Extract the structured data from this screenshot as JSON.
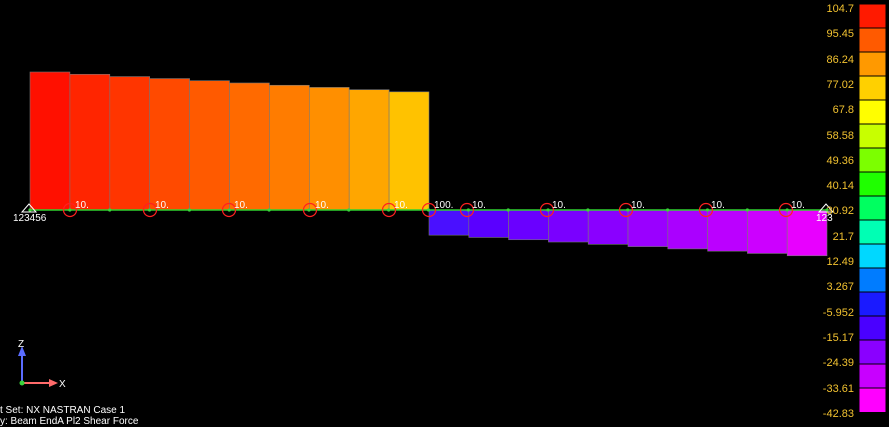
{
  "legend": {
    "values": [
      "104.7",
      "95.45",
      "86.24",
      "77.02",
      "67.8",
      "58.58",
      "49.36",
      "40.14",
      "30.92",
      "21.7",
      "12.49",
      "3.267",
      "-5.952",
      "-15.17",
      "-24.39",
      "-33.61",
      "-42.83"
    ],
    "colors": [
      "#ff1a00",
      "#ff5a00",
      "#ff9900",
      "#ffd000",
      "#fffe00",
      "#c8ff00",
      "#7cff00",
      "#1fff00",
      "#00ff60",
      "#00ffb4",
      "#00d8ff",
      "#007cff",
      "#1a1aff",
      "#4a00ff",
      "#8a00ff",
      "#c800ff",
      "#ff00ff"
    ]
  },
  "beam": {
    "left_bars": [
      {
        "value": 90.5,
        "color": "#ff1000"
      },
      {
        "value": 89.0,
        "color": "#ff2500"
      },
      {
        "value": 87.5,
        "color": "#ff3500"
      },
      {
        "value": 86.2,
        "color": "#ff4a00"
      },
      {
        "value": 84.8,
        "color": "#ff5a00"
      },
      {
        "value": 83.3,
        "color": "#ff6a00"
      },
      {
        "value": 81.8,
        "color": "#ff7c00"
      },
      {
        "value": 80.4,
        "color": "#ff8f00"
      },
      {
        "value": 78.9,
        "color": "#ffa600"
      },
      {
        "value": 77.5,
        "color": "#ffc200"
      }
    ],
    "right_bars": [
      {
        "value": -16.5,
        "color": "#4a10ff"
      },
      {
        "value": -18.0,
        "color": "#5a00ff"
      },
      {
        "value": -19.5,
        "color": "#6a00ff"
      },
      {
        "value": -21.0,
        "color": "#7a00ff"
      },
      {
        "value": -22.5,
        "color": "#8a00ff"
      },
      {
        "value": -24.0,
        "color": "#9a00ff"
      },
      {
        "value": -25.5,
        "color": "#aa00ff"
      },
      {
        "value": -27.0,
        "color": "#bb00ff"
      },
      {
        "value": -28.5,
        "color": "#cc00ff"
      },
      {
        "value": -30.0,
        "color": "#e800ff"
      }
    ],
    "load_labels": [
      "10.",
      "10.",
      "10.",
      "10.",
      "10.",
      "100.",
      "10.",
      "10.",
      "10.",
      "10.",
      "10."
    ],
    "left_constraint_label": "123456",
    "right_constraint_label": "123"
  },
  "triad": {
    "z_label": "Z",
    "x_label": "X"
  },
  "case_info": {
    "line1": "t Set: NX NASTRAN Case 1",
    "line2": "y: Beam EndA Pl2 Shear Force"
  }
}
